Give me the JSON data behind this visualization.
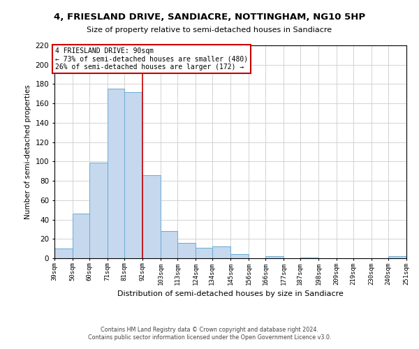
{
  "title": "4, FRIESLAND DRIVE, SANDIACRE, NOTTINGHAM, NG10 5HP",
  "subtitle": "Size of property relative to semi-detached houses in Sandiacre",
  "xlabel": "Distribution of semi-detached houses by size in Sandiacre",
  "ylabel": "Number of semi-detached properties",
  "bar_color": "#c5d8ee",
  "bar_edge_color": "#6aaad4",
  "bins": [
    39,
    50,
    60,
    71,
    81,
    92,
    103,
    113,
    124,
    134,
    145,
    156,
    166,
    177,
    187,
    198,
    209,
    219,
    230,
    240,
    251
  ],
  "counts": [
    10,
    46,
    99,
    175,
    172,
    86,
    28,
    16,
    11,
    12,
    4,
    0,
    2,
    0,
    1,
    0,
    0,
    0,
    0,
    2
  ],
  "tick_labels": [
    "39sqm",
    "50sqm",
    "60sqm",
    "71sqm",
    "81sqm",
    "92sqm",
    "103sqm",
    "113sqm",
    "124sqm",
    "134sqm",
    "145sqm",
    "156sqm",
    "166sqm",
    "177sqm",
    "187sqm",
    "198sqm",
    "209sqm",
    "219sqm",
    "230sqm",
    "240sqm",
    "251sqm"
  ],
  "property_line_x": 92,
  "property_line_color": "#cc0000",
  "ylim": [
    0,
    220
  ],
  "yticks": [
    0,
    20,
    40,
    60,
    80,
    100,
    120,
    140,
    160,
    180,
    200,
    220
  ],
  "annotation_title": "4 FRIESLAND DRIVE: 90sqm",
  "annotation_line1": "← 73% of semi-detached houses are smaller (480)",
  "annotation_line2": "26% of semi-detached houses are larger (172) →",
  "footer_line1": "Contains HM Land Registry data © Crown copyright and database right 2024.",
  "footer_line2": "Contains public sector information licensed under the Open Government Licence v3.0.",
  "background_color": "#ffffff",
  "grid_color": "#cccccc"
}
